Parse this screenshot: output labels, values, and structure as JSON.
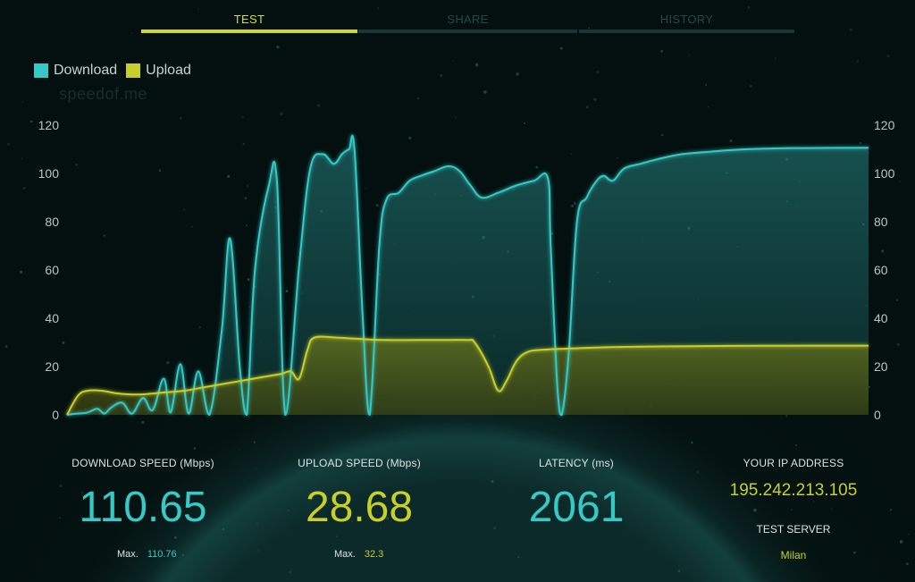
{
  "tabs": [
    {
      "label": "TEST",
      "active": true
    },
    {
      "label": "SHARE",
      "active": false
    },
    {
      "label": "HISTORY",
      "active": false
    }
  ],
  "legend": [
    {
      "label": "Download",
      "color": "#36c9c6"
    },
    {
      "label": "Upload",
      "color": "#c8ce2a"
    }
  ],
  "watermark": "speedof.me",
  "stats": {
    "download_label": "DOWNLOAD SPEED (Mbps)",
    "download_value": "110.65",
    "download_max_label": "Max.",
    "download_max": "110.76",
    "upload_label": "UPLOAD SPEED (Mbps)",
    "upload_value": "28.68",
    "upload_max_label": "Max.",
    "upload_max": "32.3",
    "latency_label": "LATENCY (ms)",
    "latency_value": "2061",
    "ip_label": "YOUR IP ADDRESS",
    "ip_value": "195.242.213.105",
    "server_label": "TEST SERVER",
    "server_value": "Milan"
  },
  "chart_data": {
    "type": "area",
    "title": "",
    "xlabel": "",
    "ylabel": "",
    "ylim": [
      0,
      120
    ],
    "yticks": [
      0,
      20,
      40,
      60,
      80,
      100,
      120
    ],
    "grid": false,
    "legend_position": "top-left",
    "series": [
      {
        "name": "Download",
        "color": "#36c9c6",
        "points": [
          [
            0,
            0
          ],
          [
            0.7,
            0.5
          ],
          [
            1.5,
            1
          ],
          [
            2.2,
            2.5
          ],
          [
            2.7,
            0.5
          ],
          [
            3.2,
            3
          ],
          [
            4.0,
            5
          ],
          [
            4.7,
            0.5
          ],
          [
            5.5,
            7
          ],
          [
            6.2,
            2
          ],
          [
            7.0,
            15
          ],
          [
            7.5,
            1
          ],
          [
            8.2,
            21
          ],
          [
            8.8,
            0.5
          ],
          [
            9.5,
            18
          ],
          [
            10.3,
            0
          ],
          [
            11.2,
            35
          ],
          [
            11.8,
            73
          ],
          [
            12.5,
            20
          ],
          [
            13.0,
            0
          ],
          [
            13.6,
            60
          ],
          [
            14.6,
            95
          ],
          [
            15.2,
            96
          ],
          [
            15.8,
            0
          ],
          [
            16.8,
            62
          ],
          [
            17.6,
            102
          ],
          [
            18.5,
            108
          ],
          [
            19.3,
            104
          ],
          [
            19.9,
            108
          ],
          [
            20.4,
            110
          ],
          [
            20.8,
            110
          ],
          [
            21.4,
            40
          ],
          [
            21.9,
            0
          ],
          [
            22.6,
            70
          ],
          [
            23.1,
            89
          ],
          [
            24.0,
            92
          ],
          [
            24.8,
            97
          ],
          [
            25.6,
            99
          ],
          [
            26.6,
            101
          ],
          [
            27.6,
            103
          ],
          [
            28.4,
            101
          ],
          [
            29.2,
            95
          ],
          [
            30.0,
            90
          ],
          [
            31.2,
            92
          ],
          [
            32.5,
            95
          ],
          [
            33.8,
            97
          ],
          [
            34.8,
            98
          ],
          [
            35.0,
            70
          ],
          [
            35.5,
            10
          ],
          [
            35.8,
            0
          ],
          [
            36.3,
            25
          ],
          [
            36.9,
            80
          ],
          [
            37.6,
            90
          ],
          [
            38.2,
            96
          ],
          [
            38.8,
            99
          ],
          [
            39.5,
            97
          ],
          [
            40.3,
            102
          ],
          [
            41.5,
            104
          ],
          [
            42.8,
            106
          ],
          [
            44.5,
            108
          ],
          [
            46.5,
            109
          ],
          [
            49.0,
            110
          ],
          [
            52.0,
            110.5
          ],
          [
            55.5,
            110.6
          ],
          [
            58.0,
            110.65
          ]
        ]
      },
      {
        "name": "Upload",
        "color": "#c8ce2a",
        "points": [
          [
            0,
            0
          ],
          [
            0.8,
            8
          ],
          [
            1.5,
            10
          ],
          [
            2.5,
            10
          ],
          [
            3.5,
            9
          ],
          [
            4.5,
            8.5
          ],
          [
            5.5,
            8.5
          ],
          [
            6.5,
            9
          ],
          [
            7.5,
            9.5
          ],
          [
            8.5,
            10
          ],
          [
            9.5,
            11
          ],
          [
            10.5,
            12
          ],
          [
            11.5,
            13
          ],
          [
            12.5,
            14
          ],
          [
            13.5,
            15
          ],
          [
            14.5,
            16
          ],
          [
            15.5,
            17
          ],
          [
            16.2,
            18
          ],
          [
            16.8,
            15
          ],
          [
            17.4,
            27
          ],
          [
            17.9,
            32
          ],
          [
            19.5,
            32
          ],
          [
            21.0,
            31.5
          ],
          [
            23.0,
            31
          ],
          [
            25.5,
            31
          ],
          [
            27.5,
            31
          ],
          [
            29.0,
            31
          ],
          [
            29.5,
            30
          ],
          [
            30.5,
            20
          ],
          [
            31.2,
            10
          ],
          [
            31.8,
            14
          ],
          [
            32.5,
            22
          ],
          [
            33.3,
            26
          ],
          [
            34.5,
            27
          ],
          [
            36.5,
            27.5
          ],
          [
            39.0,
            28
          ],
          [
            42.0,
            28.3
          ],
          [
            46.0,
            28.5
          ],
          [
            50.0,
            28.6
          ],
          [
            54.0,
            28.65
          ],
          [
            58.0,
            28.68
          ]
        ]
      }
    ]
  }
}
